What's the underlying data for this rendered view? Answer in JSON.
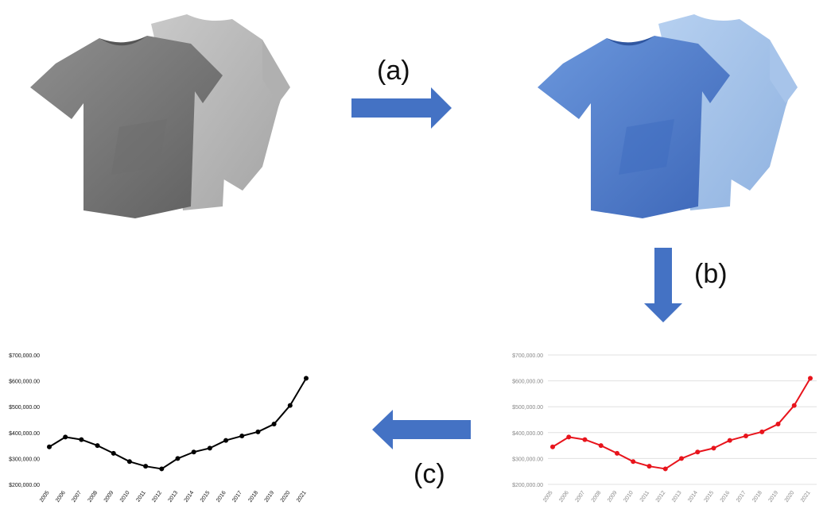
{
  "steps": {
    "a": "(a)",
    "b": "(b)",
    "c": "(c)"
  },
  "colors": {
    "arrow": "#4472c4",
    "shirt_front_gray": "#7d7d7d",
    "shirt_back_gray": "#b9b9b9",
    "shirt_front_blue": "#4f7fd0",
    "shirt_back_blue": "#9fc0e8",
    "chart_red": "#e8141c",
    "chart_black": "#000000",
    "gridline": "#e0e0e0"
  },
  "icons": {
    "image_gray": "tshirt-pair-grayscale-icon",
    "image_blue": "tshirt-pair-colorized-icon"
  },
  "chart_data": [
    {
      "type": "line",
      "title": "",
      "xlabel": "",
      "ylabel": "",
      "categories": [
        "2005",
        "2006",
        "2007",
        "2008",
        "2009",
        "2010",
        "2011",
        "2012",
        "2013",
        "2014",
        "2015",
        "2016",
        "2017",
        "2018",
        "2019",
        "2020",
        "2021"
      ],
      "series": [
        {
          "values": [
            345000,
            383000,
            373000,
            350000,
            320000,
            288000,
            270000,
            260000,
            300000,
            325000,
            340000,
            370000,
            387000,
            403000,
            433000,
            505000,
            610000
          ]
        }
      ],
      "y_ticks": [
        "$200,000.00",
        "$300,000.00",
        "$400,000.00",
        "$500,000.00",
        "$600,000.00",
        "$700,000.00"
      ],
      "ylim": [
        200000,
        700000
      ],
      "grid": true,
      "line_color": "#e8141c"
    },
    {
      "type": "line",
      "title": "",
      "xlabel": "",
      "ylabel": "",
      "categories": [
        "2005",
        "2006",
        "2007",
        "2008",
        "2009",
        "2010",
        "2011",
        "2012",
        "2013",
        "2014",
        "2015",
        "2016",
        "2017",
        "2018",
        "2019",
        "2020",
        "2021"
      ],
      "series": [
        {
          "values": [
            345000,
            383000,
            373000,
            350000,
            320000,
            288000,
            270000,
            260000,
            300000,
            325000,
            340000,
            370000,
            387000,
            403000,
            433000,
            505000,
            610000
          ]
        }
      ],
      "y_ticks": [
        "$200,000.00",
        "$300,000.00",
        "$400,000.00",
        "$500,000.00",
        "$600,000.00",
        "$700,000.00"
      ],
      "ylim": [
        200000,
        700000
      ],
      "grid": false,
      "line_color": "#000000"
    }
  ]
}
